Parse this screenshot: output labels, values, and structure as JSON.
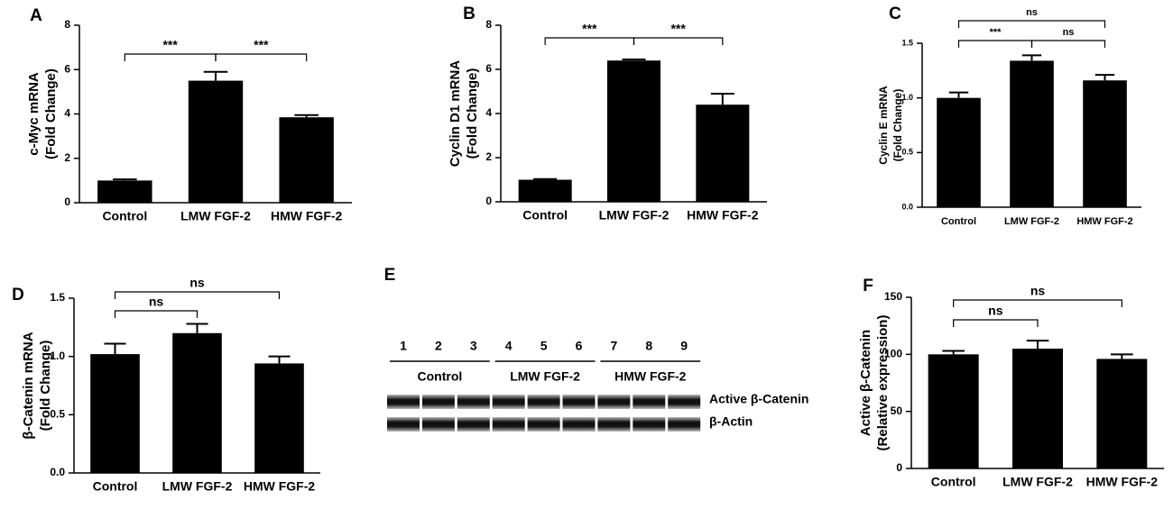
{
  "chart_data": [
    {
      "type": "bar",
      "panel": "A",
      "ylabel": [
        "c-Myc mRNA",
        "(Fold Change)"
      ],
      "categories": [
        "Control",
        "LMW FGF-2",
        "HMW FGF-2"
      ],
      "values": [
        1.0,
        5.5,
        3.85
      ],
      "errors": [
        0.05,
        0.4,
        0.1
      ],
      "color": "#000000",
      "ylim": [
        0,
        8
      ],
      "yticks": [
        0,
        2,
        4,
        6,
        8
      ],
      "brackets": [
        {
          "from": 0,
          "to": 1,
          "label": "***"
        },
        {
          "from": 1,
          "to": 2,
          "label": "***"
        }
      ]
    },
    {
      "type": "bar",
      "panel": "B",
      "ylabel": [
        "Cyclin D1 mRNA",
        "(Fold Change)"
      ],
      "categories": [
        "Control",
        "LMW FGF-2",
        "HMW FGF-2"
      ],
      "values": [
        1.0,
        6.4,
        4.4
      ],
      "errors": [
        0.03,
        0.05,
        0.5
      ],
      "color": "#000000",
      "ylim": [
        0,
        8
      ],
      "yticks": [
        0,
        2,
        4,
        6,
        8
      ],
      "brackets": [
        {
          "from": 0,
          "to": 1,
          "label": "***"
        },
        {
          "from": 1,
          "to": 2,
          "label": "***"
        }
      ]
    },
    {
      "type": "bar",
      "panel": "C",
      "ylabel": [
        "Cyclin E mRNA",
        "(Fold Change)"
      ],
      "categories": [
        "Control",
        "LMW FGF-2",
        "HMW FGF-2"
      ],
      "values": [
        1.0,
        1.34,
        1.16
      ],
      "errors": [
        0.05,
        0.05,
        0.05
      ],
      "color": "#000000",
      "ylim": [
        0,
        1.5
      ],
      "yticks": [
        {
          "value": 0,
          "label": "0.0"
        },
        {
          "value": 0.5,
          "label": "0.5"
        },
        {
          "value": 1,
          "label": "1.0"
        },
        {
          "value": 1.5,
          "label": "1.5"
        }
      ],
      "brackets": [
        {
          "from": 0,
          "to": 1,
          "label": "***"
        },
        {
          "from": 1,
          "to": 2,
          "label": "ns"
        },
        {
          "from": 0,
          "to": 2,
          "label": "ns"
        }
      ]
    },
    {
      "type": "bar",
      "panel": "D",
      "ylabel": [
        "β-Catenin mRNA",
        "(Fold Change)"
      ],
      "categories": [
        "Control",
        "LMW FGF-2",
        "HMW FGF-2"
      ],
      "values": [
        1.02,
        1.2,
        0.94
      ],
      "errors": [
        0.09,
        0.08,
        0.06
      ],
      "color": "#000000",
      "ylim": [
        0,
        1.5
      ],
      "yticks": [
        {
          "value": 0,
          "label": "0.0"
        },
        {
          "value": 0.5,
          "label": "0.5"
        },
        {
          "value": 1,
          "label": "1.0"
        },
        {
          "value": 1.5,
          "label": "1.5"
        }
      ],
      "brackets": [
        {
          "from": 0,
          "to": 1,
          "label": "ns"
        },
        {
          "from": 0,
          "to": 2,
          "label": "ns"
        }
      ]
    },
    {
      "type": "bar",
      "panel": "F",
      "ylabel": [
        "Active β-Catenin",
        "(Relative expression)"
      ],
      "categories": [
        "Control",
        "LMW FGF-2",
        "HMW FGF-2"
      ],
      "values": [
        100,
        105,
        96
      ],
      "errors": [
        3,
        7,
        4
      ],
      "color": "#000000",
      "ylim": [
        0,
        150
      ],
      "yticks": [
        0,
        50,
        100,
        150
      ],
      "brackets": [
        {
          "from": 0,
          "to": 1,
          "label": "ns"
        },
        {
          "from": 0,
          "to": 2,
          "label": "ns"
        }
      ]
    }
  ],
  "blot": {
    "panel": "E",
    "lanes": [
      "1",
      "2",
      "3",
      "4",
      "5",
      "6",
      "7",
      "8",
      "9"
    ],
    "groups": [
      "Control",
      "LMW FGF-2",
      "HMW FGF-2"
    ],
    "rows": [
      "Active β-Catenin",
      "β-Actin"
    ]
  }
}
